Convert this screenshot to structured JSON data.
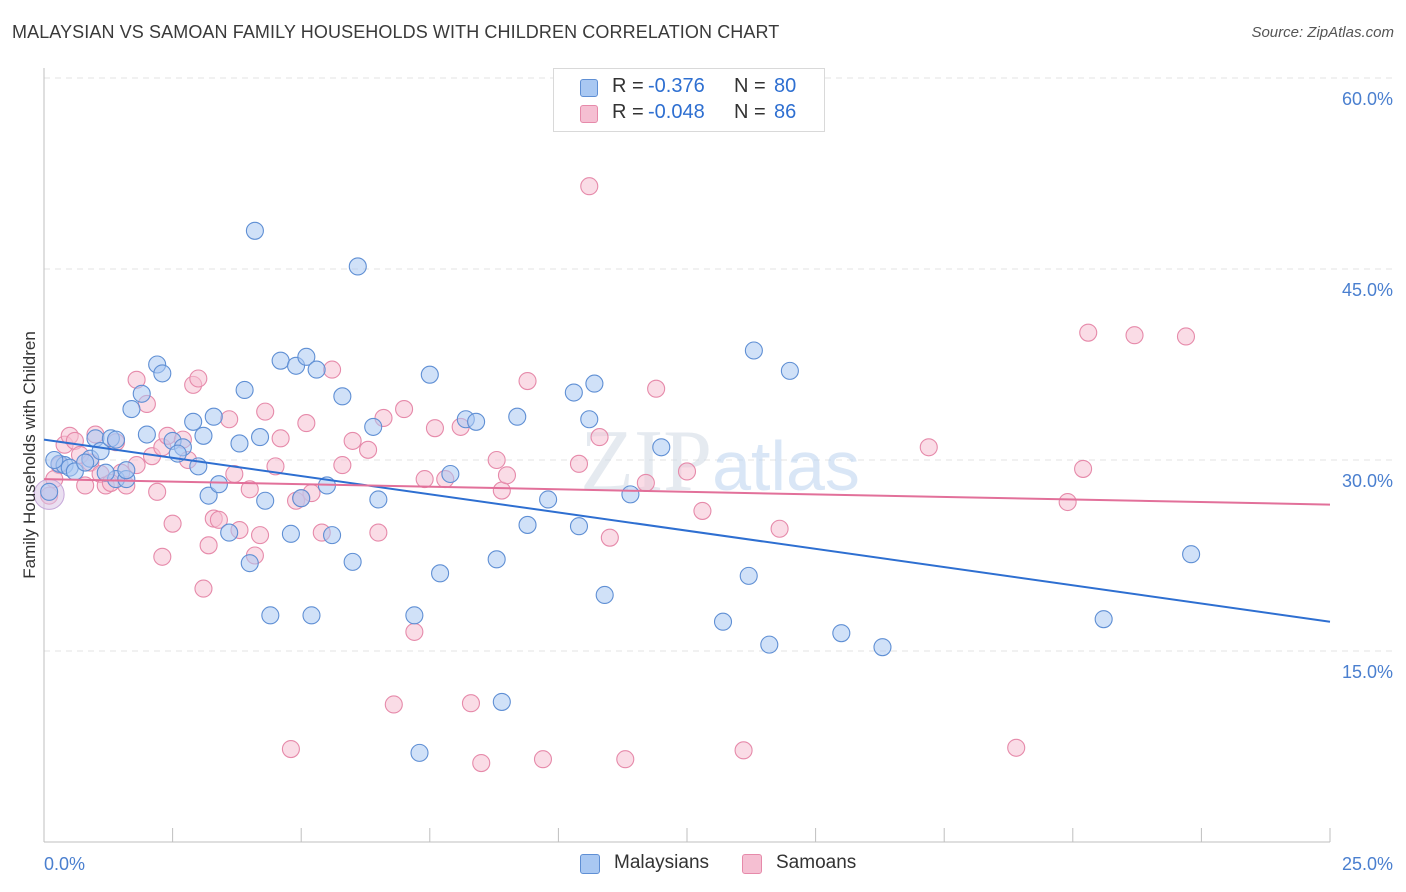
{
  "title": "MALAYSIAN VS SAMOAN FAMILY HOUSEHOLDS WITH CHILDREN CORRELATION CHART",
  "source": "Source: ZipAtlas.com",
  "watermark": "ZIPatlas",
  "legend_top": {
    "rows": [
      {
        "r_label": "R =",
        "r_value": "-0.376",
        "n_label": "N =",
        "n_value": "80"
      },
      {
        "r_label": "R =",
        "r_value": "-0.048",
        "n_label": "N =",
        "n_value": "86"
      }
    ]
  },
  "legend_bottom": {
    "items": [
      {
        "label": "Malaysians"
      },
      {
        "label": "Samoans"
      }
    ]
  },
  "colors": {
    "blue_fill": "#a9c8f2",
    "blue_stroke": "#5f8fd4",
    "blue_line": "#2e6fd1",
    "pink_fill": "#f5bfd2",
    "pink_stroke": "#e68aaa",
    "pink_line": "#e2709a",
    "axis_text": "#4a7fcf",
    "grid": "#e3e3e3"
  },
  "chart_data": {
    "type": "scatter",
    "title": "MALAYSIAN VS SAMOAN FAMILY HOUSEHOLDS WITH CHILDREN CORRELATION CHART",
    "xlabel": "",
    "ylabel": "Family Households with Children",
    "xlim": [
      0,
      25
    ],
    "ylim": [
      0,
      60
    ],
    "x_tick_labels": [
      "0.0%",
      "25.0%"
    ],
    "y_tick_labels": [
      "15.0%",
      "30.0%",
      "45.0%",
      "60.0%"
    ],
    "y_ticks": [
      15,
      30,
      45,
      60
    ],
    "grid": true,
    "legend_position": "top-center",
    "series": [
      {
        "name": "Malaysians",
        "r": -0.376,
        "n": 80,
        "trend": [
          [
            0,
            31.6
          ],
          [
            25,
            17.3
          ]
        ],
        "points": [
          [
            0.1,
            27.5
          ],
          [
            0.3,
            29.7
          ],
          [
            0.4,
            29.6
          ],
          [
            0.5,
            29.4
          ],
          [
            0.6,
            29.1
          ],
          [
            0.9,
            30.1
          ],
          [
            1.0,
            31.7
          ],
          [
            1.1,
            30.7
          ],
          [
            1.3,
            31.7
          ],
          [
            1.4,
            28.5
          ],
          [
            1.4,
            31.6
          ],
          [
            1.6,
            28.5
          ],
          [
            1.6,
            29.2
          ],
          [
            1.7,
            34.0
          ],
          [
            1.9,
            35.2
          ],
          [
            2.0,
            32.0
          ],
          [
            2.2,
            37.5
          ],
          [
            2.3,
            36.8
          ],
          [
            2.5,
            31.5
          ],
          [
            2.7,
            31.0
          ],
          [
            2.9,
            33.0
          ],
          [
            3.1,
            31.9
          ],
          [
            3.2,
            27.2
          ],
          [
            3.3,
            33.4
          ],
          [
            3.4,
            28.1
          ],
          [
            3.6,
            24.3
          ],
          [
            3.8,
            31.3
          ],
          [
            3.9,
            35.5
          ],
          [
            4.0,
            21.9
          ],
          [
            4.1,
            48.0
          ],
          [
            4.2,
            31.8
          ],
          [
            4.3,
            26.8
          ],
          [
            4.4,
            17.8
          ],
          [
            4.6,
            37.8
          ],
          [
            4.8,
            24.2
          ],
          [
            4.9,
            37.4
          ],
          [
            5.0,
            27.0
          ],
          [
            5.1,
            38.1
          ],
          [
            5.2,
            17.8
          ],
          [
            5.3,
            37.1
          ],
          [
            5.6,
            24.1
          ],
          [
            5.8,
            35.0
          ],
          [
            6.1,
            45.2
          ],
          [
            6.4,
            32.6
          ],
          [
            6.5,
            26.9
          ],
          [
            7.2,
            17.8
          ],
          [
            7.3,
            7.0
          ],
          [
            7.5,
            36.7
          ],
          [
            7.7,
            21.1
          ],
          [
            7.9,
            28.9
          ],
          [
            8.2,
            33.2
          ],
          [
            8.4,
            33.0
          ],
          [
            8.8,
            22.2
          ],
          [
            8.9,
            11.0
          ],
          [
            9.2,
            33.4
          ],
          [
            9.4,
            24.9
          ],
          [
            9.8,
            26.9
          ],
          [
            10.3,
            35.3
          ],
          [
            10.4,
            24.8
          ],
          [
            10.6,
            33.2
          ],
          [
            10.7,
            36.0
          ],
          [
            10.9,
            19.4
          ],
          [
            11.4,
            27.3
          ],
          [
            13.2,
            17.3
          ],
          [
            13.7,
            20.9
          ],
          [
            13.8,
            38.6
          ],
          [
            14.1,
            15.5
          ],
          [
            14.5,
            37.0
          ],
          [
            15.5,
            16.4
          ],
          [
            16.3,
            15.3
          ],
          [
            20.6,
            17.5
          ],
          [
            22.3,
            22.6
          ],
          [
            0.2,
            30.0
          ],
          [
            0.8,
            29.8
          ],
          [
            1.2,
            29.0
          ],
          [
            2.6,
            30.5
          ],
          [
            3.0,
            29.5
          ],
          [
            5.5,
            28.0
          ],
          [
            6.0,
            22.0
          ],
          [
            12.0,
            31.0
          ]
        ]
      },
      {
        "name": "Samoans",
        "r": -0.048,
        "n": 86,
        "trend": [
          [
            0,
            28.5
          ],
          [
            25,
            26.5
          ]
        ],
        "points": [
          [
            0.1,
            27.2
          ],
          [
            0.3,
            29.6
          ],
          [
            0.4,
            31.2
          ],
          [
            0.5,
            31.9
          ],
          [
            0.6,
            31.5
          ],
          [
            0.7,
            30.4
          ],
          [
            0.9,
            29.8
          ],
          [
            1.0,
            32.0
          ],
          [
            1.1,
            28.9
          ],
          [
            1.2,
            28.0
          ],
          [
            1.4,
            31.4
          ],
          [
            1.5,
            29.0
          ],
          [
            1.6,
            28.0
          ],
          [
            1.8,
            29.6
          ],
          [
            1.8,
            36.3
          ],
          [
            2.0,
            34.4
          ],
          [
            2.1,
            30.3
          ],
          [
            2.3,
            31.0
          ],
          [
            2.3,
            22.4
          ],
          [
            2.4,
            31.9
          ],
          [
            2.5,
            25.0
          ],
          [
            2.7,
            31.6
          ],
          [
            2.8,
            30.0
          ],
          [
            2.9,
            35.9
          ],
          [
            3.0,
            36.4
          ],
          [
            3.1,
            19.9
          ],
          [
            3.2,
            23.3
          ],
          [
            3.3,
            25.4
          ],
          [
            3.4,
            25.3
          ],
          [
            3.6,
            33.2
          ],
          [
            3.7,
            28.9
          ],
          [
            3.8,
            24.5
          ],
          [
            4.0,
            27.7
          ],
          [
            4.1,
            22.5
          ],
          [
            4.2,
            24.1
          ],
          [
            4.3,
            33.8
          ],
          [
            4.5,
            29.5
          ],
          [
            4.6,
            31.7
          ],
          [
            4.8,
            7.3
          ],
          [
            4.9,
            26.8
          ],
          [
            5.1,
            32.9
          ],
          [
            5.2,
            27.4
          ],
          [
            5.4,
            24.3
          ],
          [
            5.6,
            37.1
          ],
          [
            5.8,
            29.6
          ],
          [
            6.0,
            31.5
          ],
          [
            6.3,
            30.8
          ],
          [
            6.5,
            24.3
          ],
          [
            6.6,
            33.3
          ],
          [
            6.8,
            10.8
          ],
          [
            7.0,
            34.0
          ],
          [
            7.2,
            16.5
          ],
          [
            7.4,
            28.5
          ],
          [
            7.6,
            32.5
          ],
          [
            7.8,
            28.5
          ],
          [
            8.1,
            32.6
          ],
          [
            8.3,
            10.9
          ],
          [
            8.5,
            6.2
          ],
          [
            8.8,
            30.0
          ],
          [
            8.9,
            27.6
          ],
          [
            9.4,
            36.2
          ],
          [
            9.7,
            6.5
          ],
          [
            10.4,
            29.7
          ],
          [
            10.6,
            51.5
          ],
          [
            10.8,
            31.8
          ],
          [
            11.0,
            23.9
          ],
          [
            11.3,
            6.5
          ],
          [
            11.7,
            28.2
          ],
          [
            11.9,
            35.6
          ],
          [
            12.5,
            29.1
          ],
          [
            13.6,
            7.2
          ],
          [
            14.3,
            24.6
          ],
          [
            17.2,
            31.0
          ],
          [
            18.9,
            7.4
          ],
          [
            19.9,
            26.7
          ],
          [
            20.2,
            29.3
          ],
          [
            20.3,
            40.0
          ],
          [
            21.2,
            39.8
          ],
          [
            22.2,
            39.7
          ],
          [
            0.2,
            28.5
          ],
          [
            0.8,
            28.0
          ],
          [
            1.3,
            28.2
          ],
          [
            2.2,
            27.5
          ],
          [
            5.0,
            27.0
          ],
          [
            9.0,
            28.8
          ],
          [
            12.8,
            26.0
          ]
        ]
      }
    ]
  }
}
